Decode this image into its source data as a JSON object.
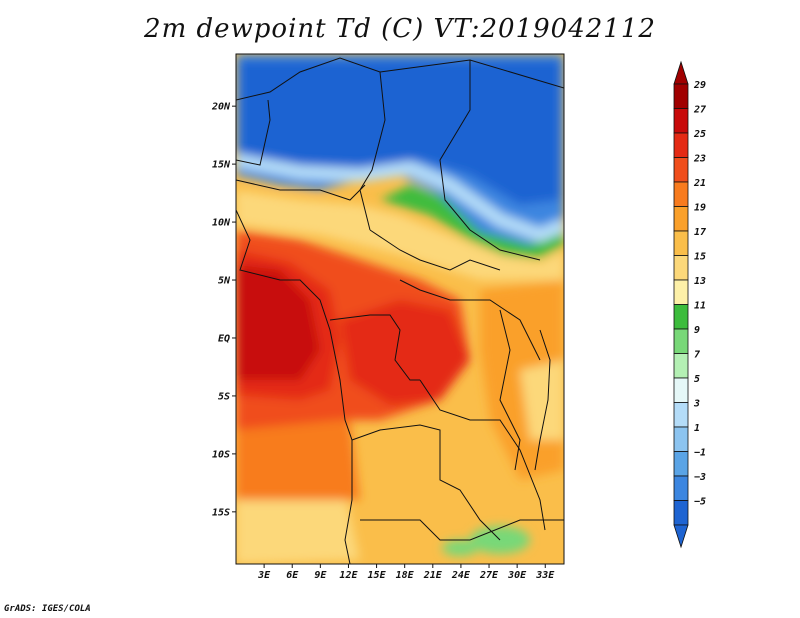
{
  "title": "2m dewpoint Td (C) VT:2019042112",
  "footer": "GrADS: IGES/COLA",
  "map": {
    "lat_range": [
      -19.5,
      24.5
    ],
    "lon_range": [
      0,
      35
    ],
    "lat_labels": [
      {
        "lat": 20,
        "text": "20N"
      },
      {
        "lat": 15,
        "text": "15N"
      },
      {
        "lat": 10,
        "text": "10N"
      },
      {
        "lat": 5,
        "text": "5N"
      },
      {
        "lat": 0,
        "text": "EQ"
      },
      {
        "lat": -5,
        "text": "5S"
      },
      {
        "lat": -10,
        "text": "10S"
      },
      {
        "lat": -15,
        "text": "15S"
      }
    ],
    "lon_labels": [
      {
        "lon": 3,
        "text": "3E"
      },
      {
        "lon": 6,
        "text": "6E"
      },
      {
        "lon": 9,
        "text": "9E"
      },
      {
        "lon": 12,
        "text": "12E"
      },
      {
        "lon": 15,
        "text": "15E"
      },
      {
        "lon": 18,
        "text": "18E"
      },
      {
        "lon": 21,
        "text": "21E"
      },
      {
        "lon": 24,
        "text": "24E"
      },
      {
        "lon": 27,
        "text": "27E"
      },
      {
        "lon": 30,
        "text": "30E"
      },
      {
        "lon": 33,
        "text": "33E"
      }
    ]
  },
  "colorbar": {
    "levels": [
      {
        "value": "29",
        "color": "#a00000"
      },
      {
        "value": "27",
        "color": "#c80a0a"
      },
      {
        "value": "25",
        "color": "#e42a14"
      },
      {
        "value": "23",
        "color": "#f04e1c"
      },
      {
        "value": "21",
        "color": "#f87b1e"
      },
      {
        "value": "19",
        "color": "#faa02a"
      },
      {
        "value": "17",
        "color": "#fabe4a"
      },
      {
        "value": "15",
        "color": "#fcd87a"
      },
      {
        "value": "13",
        "color": "#fdf0a8"
      },
      {
        "value": "11",
        "color": "#3cbc3c"
      },
      {
        "value": "9",
        "color": "#78d878"
      },
      {
        "value": "7",
        "color": "#b4f0b4"
      },
      {
        "value": "5",
        "color": "#e6f8f8"
      },
      {
        "value": "3",
        "color": "#b4dcf8"
      },
      {
        "value": "1",
        "color": "#8cc4f0"
      },
      {
        "value": "−1",
        "color": "#5aa4e6"
      },
      {
        "value": "−3",
        "color": "#3c86e0"
      },
      {
        "value": "−5",
        "color": "#1e64d2"
      }
    ],
    "top_color": "#a00000",
    "bottom_color": "#1e64d2"
  }
}
